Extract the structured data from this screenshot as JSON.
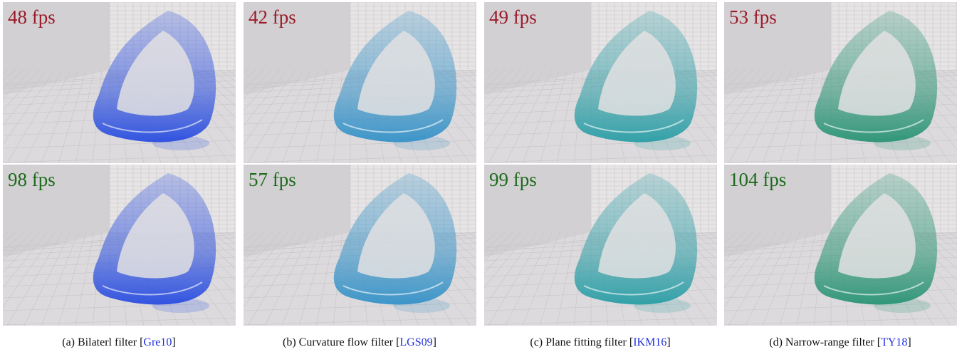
{
  "panels": [
    {
      "caption": "(a) Bilaterl filter",
      "citation": "[Gre10]",
      "top_fps": "48 fps",
      "bottom_fps": "98 fps",
      "color": "#2a4ee0"
    },
    {
      "caption": "(b) Curvature flow filter",
      "citation": "[LGS09]",
      "top_fps": "42 fps",
      "bottom_fps": "57 fps",
      "color": "#3592c8"
    },
    {
      "caption": "(c) Plane fitting filter",
      "citation": "[IKM16]",
      "top_fps": "49 fps",
      "bottom_fps": "99 fps",
      "color": "#2b9ea6"
    },
    {
      "caption": "(d) Narrow-range filter",
      "citation": "[TY18]",
      "top_fps": "53 fps",
      "bottom_fps": "104 fps",
      "color": "#2a9474"
    }
  ]
}
